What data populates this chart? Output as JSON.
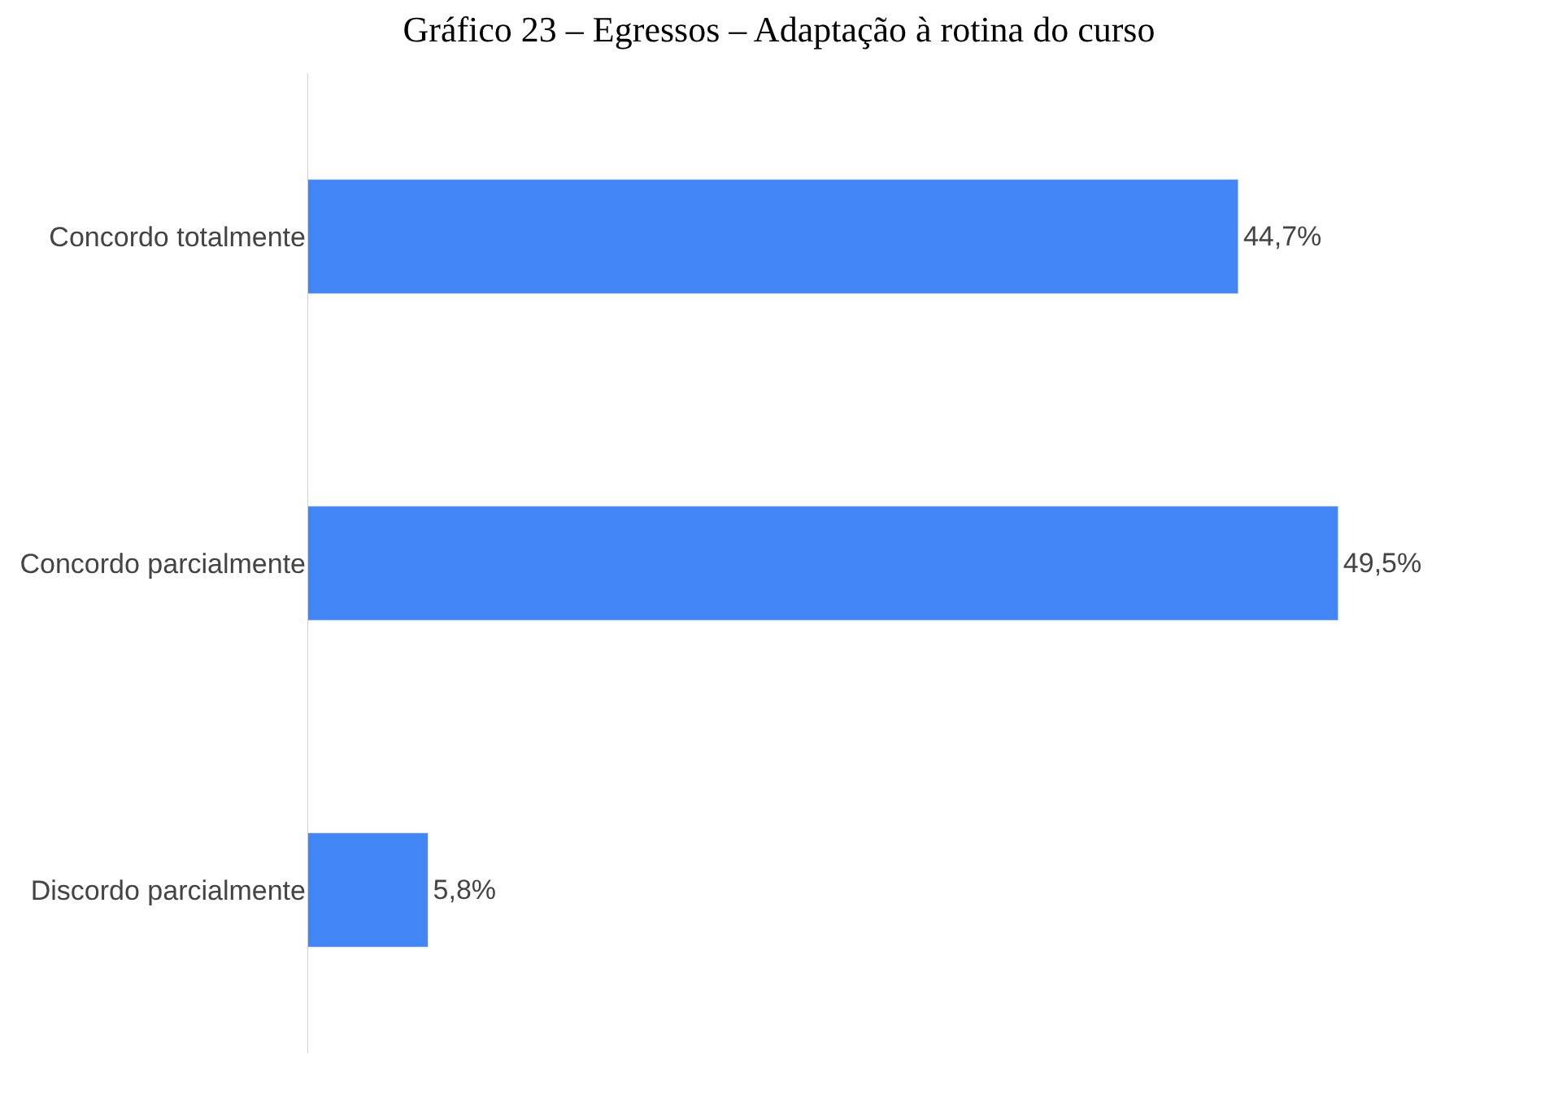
{
  "chart_data": {
    "type": "bar",
    "orientation": "horizontal",
    "title": "Gráfico 23 – Egressos – Adaptação à rotina do curso",
    "categories": [
      "Concordo totalmente",
      "Concordo parcialmente",
      "Discordo parcialmente"
    ],
    "values": [
      44.7,
      49.5,
      5.8
    ],
    "value_labels": [
      "44,7%",
      "49,5%",
      "5,8%"
    ],
    "color": "#4285f4"
  }
}
